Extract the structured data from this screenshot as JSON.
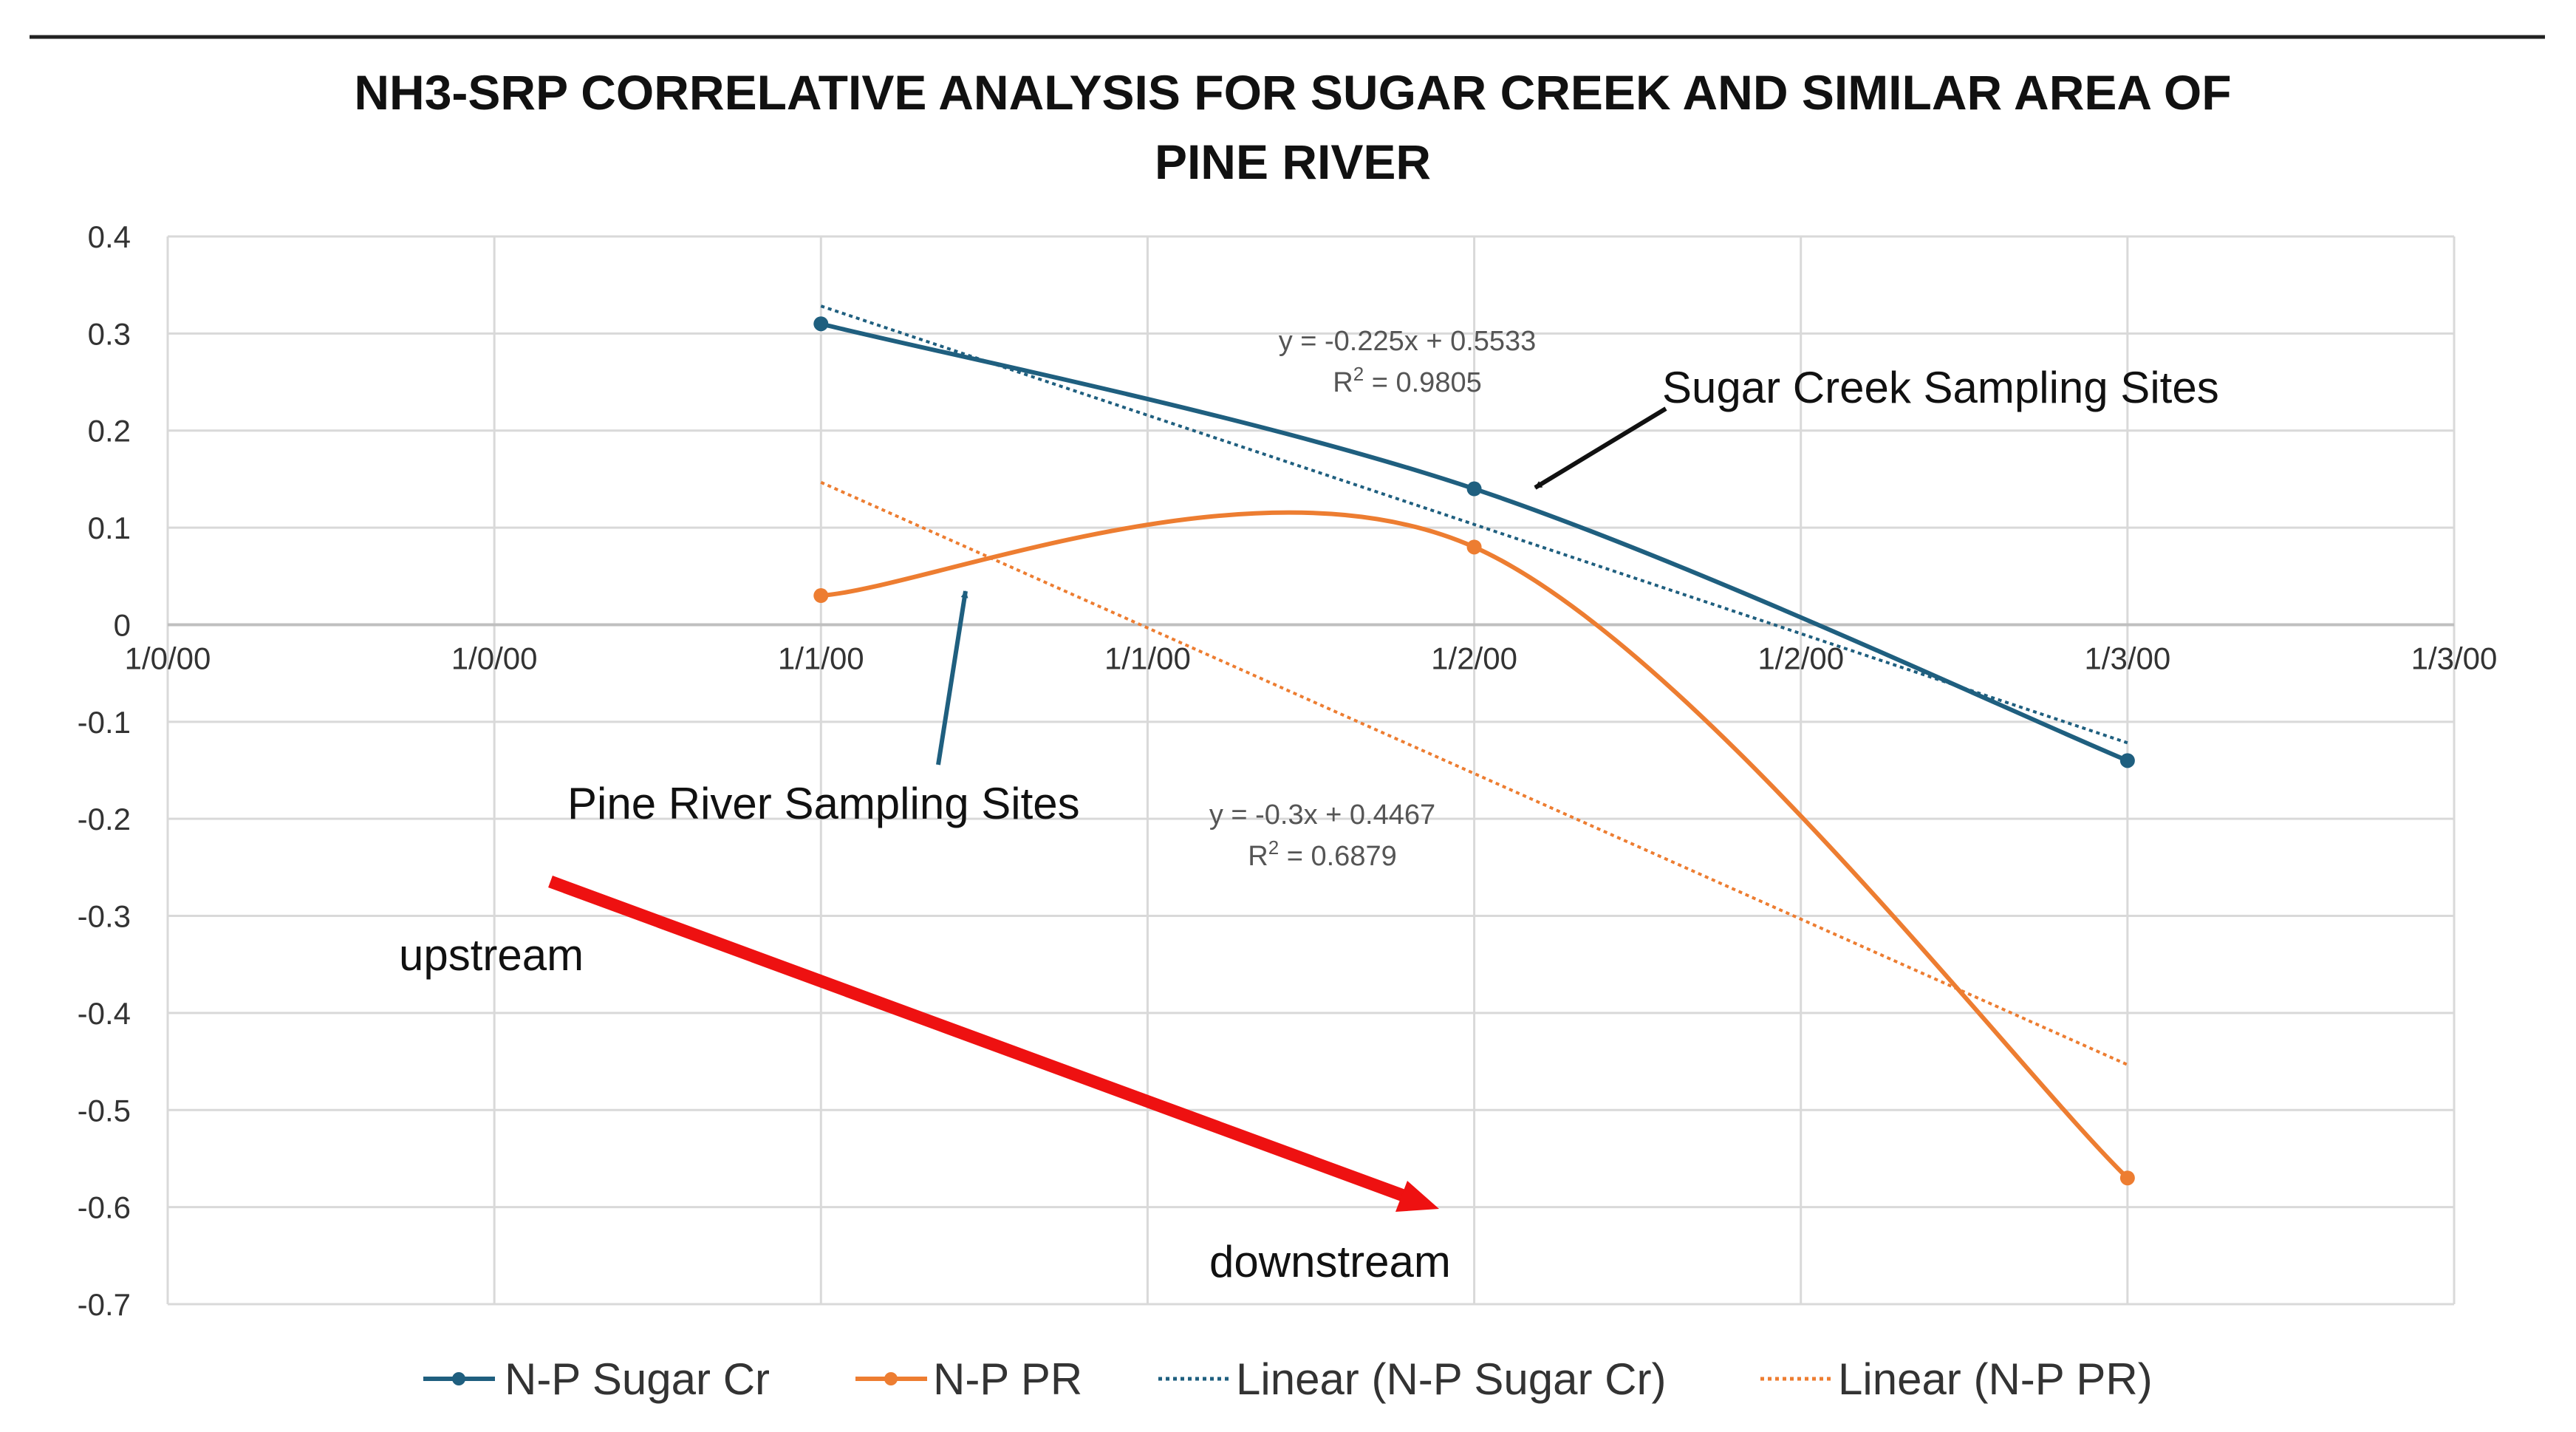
{
  "chart_data": {
    "type": "line",
    "title_lines": [
      "NH3-SRP CORRELATIVE ANALYSIS FOR SUGAR CREEK AND SIMILAR AREA OF",
      "PINE RIVER"
    ],
    "x_tick_labels": [
      "1/0/00",
      "1/0/00",
      "1/1/00",
      "1/1/00",
      "1/2/00",
      "1/2/00",
      "1/3/00",
      "1/3/00"
    ],
    "xlim": [
      0,
      3.5
    ],
    "ylim": [
      -0.7,
      0.4
    ],
    "y_ticks": [
      0.4,
      0.3,
      0.2,
      0.1,
      0,
      -0.1,
      -0.2,
      -0.3,
      -0.4,
      -0.5,
      -0.6,
      -0.7
    ],
    "y_tick_labels": [
      "0.4",
      "0.3",
      "0.2",
      "0.1",
      "0",
      "-0.1",
      "-0.2",
      "-0.3",
      "-0.4",
      "-0.5",
      "-0.6",
      "-0.7"
    ],
    "grid": true,
    "series": [
      {
        "name": "N-P Sugar Cr",
        "color": "#1f5f7f",
        "x": [
          1,
          2,
          3
        ],
        "values": [
          0.31,
          0.14,
          -0.14
        ]
      },
      {
        "name": "N-P PR",
        "color": "#ed7d31",
        "x": [
          1,
          2,
          3
        ],
        "values": [
          0.03,
          0.08,
          -0.57
        ]
      }
    ],
    "trendlines": [
      {
        "name": "Linear (N-P Sugar Cr)",
        "color": "#1f5f7f",
        "slope": -0.225,
        "intercept": 0.5533,
        "x_range": [
          1,
          3
        ],
        "equation": "y = -0.225x + 0.5533",
        "r2_label": "R",
        "r2_value": " = 0.9805"
      },
      {
        "name": "Linear (N-P PR)",
        "color": "#ed7d31",
        "slope": -0.3,
        "intercept": 0.4467,
        "x_range": [
          1,
          3
        ],
        "equation": "y = -0.3x + 0.4467",
        "r2_label": "R",
        "r2_value": " = 0.6879"
      }
    ],
    "annotations": {
      "sugar_creek": "Sugar Creek Sampling Sites",
      "pine_river": "Pine River Sampling Sites",
      "upstream": "upstream",
      "downstream": "downstream"
    },
    "legend": [
      "N-P Sugar Cr",
      "N-P PR",
      "Linear (N-P Sugar Cr)",
      "Linear (N-P PR)"
    ],
    "legend_position": "bottom"
  }
}
